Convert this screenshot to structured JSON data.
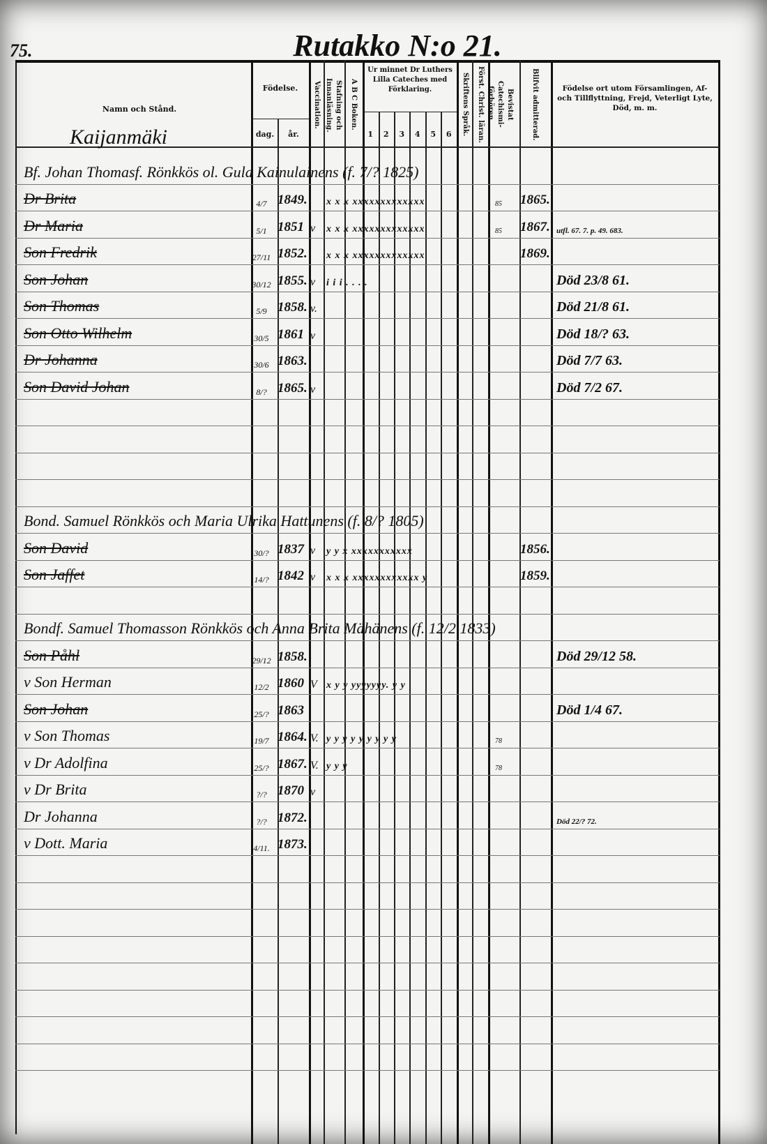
{
  "page_number": "75.",
  "title": "Rutakko N:o 21.",
  "headers": {
    "name": "Namn och Stånd.",
    "birth": "Födelse.",
    "day": "dag.",
    "year": "år.",
    "vaccination": "Vaccination.",
    "reading": "Stafning och Innanläsning.",
    "abc": "A B C Boken.",
    "catechism": "Ur minnet Dr Luthers Lilla Cateches med Förklaring.",
    "cat_cols": [
      "1",
      "2",
      "3",
      "4",
      "5",
      "6"
    ],
    "scripture": "Skriftens Språk.",
    "christ": "Först. Christ. läran.",
    "proof": "Bevistat Catechismi-förhören.",
    "admitted": "Blifvit admitterad.",
    "remarks": "Födelse ort utom Församlingen, Af- och Tillflyttning, Frejd, Veterligt Lyte, Död, m. m."
  },
  "village": "Kaijanmäki",
  "rows": [
    {
      "head": "Bf. Johan Thomasf. Rönkkös ol. Gula Kainulainens (f. 7/? 1825)"
    },
    {
      "name": "Dr Brita",
      "struck": true,
      "dm": "4/7",
      "year": "1849.",
      "marks": "x x x xxxxxxxxxxxxx",
      "bev": "85",
      "admitted": "1865."
    },
    {
      "name": "Dr Maria",
      "struck": true,
      "dm": "5/1",
      "year": "1851",
      "vac": "v",
      "marks": "x x x xxxxxxxxxxxxx",
      "bev": "85",
      "admitted": "1867.",
      "remark": "utfl. 67. 7. p. 49. 683.",
      "remark_small": true
    },
    {
      "name": "Son Fredrik",
      "struck": true,
      "dm": "27/11",
      "year": "1852.",
      "marks": "x x x xxxxxxxxxxxxx",
      "admitted": "1869."
    },
    {
      "name": "Son Johan",
      "struck": true,
      "dm": "30/12",
      "year": "1855.",
      "vac": "v",
      "marks": "i i i . . . .",
      "remark": "Död 23/8 61."
    },
    {
      "name": "Son Thomas",
      "struck": true,
      "dm": "5/9",
      "year": "1858.",
      "vac": "v.",
      "remark": "Död 21/8 61."
    },
    {
      "name": "Son Otto Wilhelm",
      "struck": true,
      "dm": "30/5",
      "year": "1861",
      "vac": "v",
      "remark": "Död 18/? 63."
    },
    {
      "name": "Dr Johanna",
      "struck": true,
      "dm": "30/6",
      "year": "1863.",
      "remark": "Död 7/7 63."
    },
    {
      "name": "Son David Johan",
      "struck": true,
      "dm": "8/?",
      "year": "1865.",
      "vac": "v",
      "remark": "Död 7/2 67."
    },
    {},
    {},
    {},
    {},
    {
      "head": "Bond. Samuel Rönkkös och Maria Ulrika Hattunens (f. 8/? 1805)"
    },
    {
      "name": "Son David",
      "struck": true,
      "dm": "30/?",
      "year": "1837",
      "vac": "v",
      "marks": "y y x xxxxxxxxxxx",
      "admitted": "1856."
    },
    {
      "name": "Son Jaffet",
      "struck": true,
      "dm": "14/?",
      "year": "1842",
      "vac": "v",
      "marks": "x x x xxxxxxxxxxxx y",
      "admitted": "1859."
    },
    {},
    {
      "head": "Bondf. Samuel Thomasson Rönkkös och Anna Brita Mähänens (f. 12/2 1833)"
    },
    {
      "name": "Son Påhl",
      "struck": true,
      "dm": "29/12",
      "year": "1858.",
      "remark": "Död 29/12 58."
    },
    {
      "name": "v Son Herman",
      "dm": "12/2",
      "year": "1860",
      "vac": "V",
      "marks": "x y y yyyyyyy. y y"
    },
    {
      "name": "Son Johan",
      "struck": true,
      "dm": "25/?",
      "year": "1863",
      "remark": "Död 1/4 67."
    },
    {
      "name": "v Son Thomas",
      "dm": "19/7",
      "year": "1864.",
      "vac": "V.",
      "marks": "y y y y y y y y y",
      "bev": "78"
    },
    {
      "name": "v Dr Adolfina",
      "dm": "25/?",
      "year": "1867.",
      "vac": "V.",
      "marks": "y y y",
      "bev": "78"
    },
    {
      "name": "v Dr Brita",
      "dm": "?/?",
      "year": "1870",
      "vac": "v"
    },
    {
      "name": "Dr Johanna",
      "dm": "?/?",
      "year": "1872.",
      "remark": "Död 22/? 72.",
      "remark_small": true
    },
    {
      "name": "v Dott. Maria",
      "dm": "4/11.",
      "year": "1873."
    },
    {},
    {},
    {},
    {},
    {},
    {},
    {},
    {}
  ]
}
